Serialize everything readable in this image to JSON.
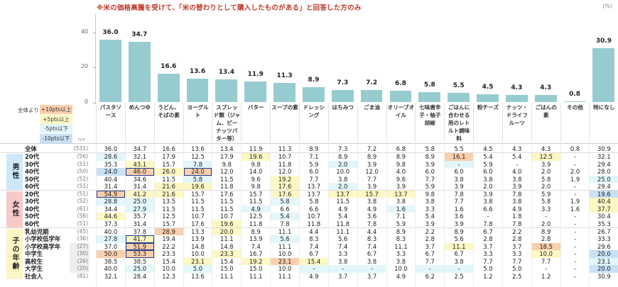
{
  "title": "※米の価格高騰を受けて、「米の替わりとして購入したものがある」と回答した方のみ",
  "unit": "(%)",
  "legend": {
    "caption": "全体より",
    "items": [
      {
        "label": "+10pts以上",
        "code": "o",
        "color": "#f9cfae"
      },
      {
        "label": "+5pts以上",
        "code": "y",
        "color": "#fdf7c3"
      },
      {
        "label": "-5pts以下",
        "code": "c",
        "color": "#e2f6fb"
      },
      {
        "label": "-10pts以下",
        "code": "b",
        "color": "#c8e1f5"
      }
    ],
    "n_label": "n="
  },
  "colors": {
    "bar": "#96ccd0",
    "title": "#c0392b",
    "box_border": "#1f3b8a",
    "group_male": "#cde8fb",
    "group_female": "#f8c9c9",
    "group_child": "#fdf5c6"
  },
  "chart_data": {
    "type": "bar",
    "title": "※米の価格高騰を受けて、「米の替わりとして購入したものがある」と回答した方のみ",
    "xlabel": "",
    "ylabel": "(%)",
    "ylim": [
      0,
      48
    ],
    "yticks": [
      0,
      20,
      40
    ],
    "grid": false,
    "categories": [
      "パスタソース",
      "めんつゆ",
      "うどん、そばの素",
      "ヨーグルト",
      "スプレッド類（ジャム、ピーナッツバター等）",
      "バター",
      "スープの素",
      "ドレッシング",
      "はちみつ",
      "ごま油",
      "オリーブオイル",
      "七味唐辛子・柚子胡椒",
      "ごはんに合わせる用のレトルト調味料",
      "粉チーズ",
      "ナッツ・ドライフルーツ",
      "ごはんの素",
      "その他",
      "特になし"
    ],
    "values": [
      36.0,
      34.7,
      16.6,
      13.6,
      13.4,
      11.9,
      11.3,
      8.9,
      7.3,
      7.2,
      6.8,
      5.8,
      5.5,
      4.5,
      4.3,
      4.3,
      0.8,
      30.9
    ]
  },
  "columns": [
    {
      "label": "パスタソース"
    },
    {
      "label": "めんつゆ"
    },
    {
      "label": "うどん、そばの素"
    },
    {
      "label": "ヨーグルト"
    },
    {
      "label": "スプレッド類（ジャム、ピーナッツバター等）"
    },
    {
      "label": "バター"
    },
    {
      "label": "スープの素"
    },
    {
      "label": "ドレッシング"
    },
    {
      "label": "はちみつ"
    },
    {
      "label": "ごま油"
    },
    {
      "label": "オリーブオイル"
    },
    {
      "label": "七味唐辛子・柚子胡椒"
    },
    {
      "label": "ごはんに合わせる用のレトルト調味料"
    },
    {
      "label": "粉チーズ"
    },
    {
      "label": "ナッツ・ドライフルーツ"
    },
    {
      "label": "ごはんの素"
    },
    {
      "label": "その他"
    },
    {
      "label": "特になし"
    }
  ],
  "groups": [
    {
      "label": "男性",
      "color": "#cde8fb",
      "start": 1,
      "count": 5
    },
    {
      "label": "女性",
      "color": "#f8c9c9",
      "start": 6,
      "count": 5
    },
    {
      "label": "子の年齢",
      "color": "#fdf5c6",
      "start": 11,
      "count": 7
    }
  ],
  "rows": [
    {
      "label": "全体",
      "n": "(531)",
      "small": false,
      "values": [
        "36.0",
        "34.7",
        "16.6",
        "13.6",
        "13.4",
        "11.9",
        "11.3",
        "8.9",
        "7.3",
        "7.2",
        "6.8",
        "5.8",
        "5.5",
        "4.5",
        "4.3",
        "4.3",
        "0.8",
        "30.9"
      ],
      "hl": [
        "",
        "",
        "",
        "",
        "",
        "",
        "",
        "",
        "",
        "",
        "",
        "",
        "",
        "",
        "",
        "",
        "",
        ""
      ],
      "box": []
    },
    {
      "label": "20代",
      "n": "(56)",
      "small": false,
      "values": [
        "28.6",
        "32.1",
        "17.9",
        "12.5",
        "17.9",
        "19.6",
        "10.7",
        "7.1",
        "8.9",
        "8.9",
        "8.9",
        "8.9",
        "16.1",
        "5.4",
        "5.4",
        "12.5",
        "-",
        "32.1"
      ],
      "hl": [
        "c",
        "",
        "",
        "",
        "",
        "y",
        "",
        "",
        "",
        "",
        "",
        "",
        "o",
        "",
        "",
        "y",
        "",
        ""
      ],
      "box": []
    },
    {
      "label": "30代",
      "n": "(51)",
      "small": false,
      "values": [
        "35.3",
        "43.1",
        "15.7",
        "7.8",
        "9.8",
        "9.8",
        "11.8",
        "5.9",
        "2.0",
        "3.9",
        "9.8",
        "3.9",
        "-",
        "5.9",
        "-",
        "3.9",
        "-",
        "29.4"
      ],
      "hl": [
        "",
        "y",
        "",
        "c",
        "",
        "",
        "",
        "",
        "c",
        "",
        "",
        "",
        "c",
        "",
        "",
        "",
        "",
        ""
      ],
      "box": []
    },
    {
      "label": "40代",
      "n": "(50)",
      "small": false,
      "values": [
        "24.0",
        "46.0",
        "26.0",
        "24.0",
        "12.0",
        "14.0",
        "12.0",
        "6.0",
        "10.0",
        "12.0",
        "4.0",
        "6.0",
        "6.0",
        "6.0",
        "4.0",
        "2.0",
        "2.0",
        "28.0"
      ],
      "hl": [
        "b",
        "o",
        "y",
        "o",
        "",
        "",
        "",
        "",
        "",
        "",
        "",
        "",
        "",
        "",
        "",
        "",
        "",
        ""
      ],
      "box": [
        1,
        3
      ]
    },
    {
      "label": "50代",
      "n": "(52)",
      "small": false,
      "values": [
        "40.4",
        "34.6",
        "11.5",
        "5.8",
        "11.5",
        "9.6",
        "19.2",
        "7.7",
        "3.8",
        "7.7",
        "9.6",
        "7.7",
        "3.8",
        "3.8",
        "3.8",
        "5.8",
        "1.9",
        "25.0"
      ],
      "hl": [
        "",
        "",
        "",
        "c",
        "",
        "",
        "y",
        "",
        "",
        "",
        "",
        "",
        "",
        "",
        "",
        "",
        "",
        "c"
      ],
      "box": []
    },
    {
      "label": "60代",
      "n": "(51)",
      "small": false,
      "values": [
        "31.4",
        "31.4",
        "21.6",
        "19.6",
        "11.8",
        "9.8",
        "17.6",
        "13.7",
        "2.0",
        "3.9",
        "3.9",
        "5.9",
        "3.9",
        "2.0",
        "3.9",
        "2.0",
        "-",
        "29.4"
      ],
      "hl": [
        "",
        "",
        "y",
        "y",
        "",
        "",
        "y",
        "",
        "c",
        "",
        "",
        "",
        "",
        "",
        "",
        "",
        "",
        ""
      ],
      "box": []
    },
    {
      "label": "20代",
      "n": "(51)",
      "small": false,
      "values": [
        "54.9",
        "41.2",
        "21.6",
        "15.7",
        "17.6",
        "15.7",
        "17.6",
        "13.7",
        "13.7",
        "15.7",
        "13.7",
        "9.8",
        "7.8",
        "3.9",
        "7.8",
        "5.9",
        "-",
        "19.6"
      ],
      "hl": [
        "o",
        "y",
        "y",
        "",
        "",
        "",
        "y",
        "",
        "y",
        "y",
        "y",
        "",
        "",
        "",
        "",
        "",
        "",
        "b"
      ],
      "box": [
        0
      ]
    },
    {
      "label": "30代",
      "n": "(52)",
      "small": false,
      "values": [
        "28.8",
        "25.0",
        "13.5",
        "11.5",
        "11.5",
        "11.5",
        "5.8",
        "5.8",
        "11.5",
        "3.8",
        "3.8",
        "3.8",
        "7.7",
        "3.8",
        "3.8",
        "5.8",
        "1.9",
        "40.4"
      ],
      "hl": [
        "c",
        "c",
        "",
        "",
        "",
        "",
        "c",
        "",
        "",
        "",
        "",
        "",
        "",
        "",
        "",
        "",
        "",
        "y"
      ],
      "box": []
    },
    {
      "label": "40代",
      "n": "(61)",
      "small": false,
      "values": [
        "34.4",
        "27.9",
        "11.5",
        "11.5",
        "11.5",
        "4.9",
        "6.6",
        "6.6",
        "4.9",
        "4.9",
        "1.6",
        "3.3",
        "1.6",
        "6.6",
        "4.9",
        "3.3",
        "1.6",
        "37.7"
      ],
      "hl": [
        "",
        "c",
        "",
        "",
        "",
        "c",
        "",
        "",
        "",
        "",
        "c",
        "",
        "",
        "",
        "",
        "",
        "",
        "y"
      ],
      "box": []
    },
    {
      "label": "50代",
      "n": "(56)",
      "small": false,
      "values": [
        "44.6",
        "35.7",
        "12.5",
        "10.7",
        "10.7",
        "12.5",
        "5.4",
        "10.7",
        "5.4",
        "3.6",
        "7.1",
        "5.4",
        "3.6",
        "-",
        "1.8",
        "-",
        "-",
        "30.4"
      ],
      "hl": [
        "y",
        "",
        "",
        "",
        "",
        "",
        "c",
        "",
        "",
        "",
        "",
        "",
        "",
        "",
        "",
        "",
        "",
        ""
      ],
      "box": []
    },
    {
      "label": "60代",
      "n": "(51)",
      "small": false,
      "values": [
        "37.3",
        "31.4",
        "15.7",
        "17.6",
        "19.6",
        "11.8",
        "7.8",
        "11.8",
        "11.8",
        "7.8",
        "5.9",
        "3.9",
        "3.9",
        "7.8",
        "7.8",
        "2.0",
        "-",
        "35.3"
      ],
      "hl": [
        "",
        "",
        "",
        "",
        "y",
        "",
        "",
        "",
        "",
        "",
        "",
        "",
        "",
        "",
        "",
        "",
        "",
        ""
      ],
      "box": []
    },
    {
      "label": "乳幼児期",
      "n": "(45)",
      "small": false,
      "values": [
        "40.0",
        "37.8",
        "28.9",
        "13.3",
        "20.0",
        "8.9",
        "11.1",
        "4.4",
        "11.1",
        "4.4",
        "8.9",
        "2.2",
        "8.9",
        "6.7",
        "2.2",
        "8.9",
        "-",
        "26.7"
      ],
      "hl": [
        "",
        "",
        "o",
        "",
        "y",
        "",
        "",
        "",
        "",
        "",
        "",
        "",
        "",
        "",
        "",
        "",
        "",
        ""
      ],
      "box": []
    },
    {
      "label": "小学校低学年",
      "n": "(36)",
      "small": false,
      "values": [
        "27.8",
        "41.7",
        "19.4",
        "13.9",
        "11.1",
        "13.9",
        "5.6",
        "8.3",
        "5.6",
        "8.3",
        "8.3",
        "2.8",
        "5.6",
        "2.8",
        "2.8",
        "2.8",
        "-",
        "33.3"
      ],
      "hl": [
        "c",
        "y",
        "",
        "",
        "",
        "",
        "c",
        "",
        "",
        "",
        "",
        "",
        "",
        "",
        "",
        "",
        "",
        ""
      ],
      "box": [
        1
      ]
    },
    {
      "label": "小学校高学年",
      "n": "(27)",
      "small": true,
      "values": [
        "37.0",
        "51.9",
        "22.2",
        "14.8",
        "14.8",
        "7.4",
        "11.1",
        "7.4",
        "7.4",
        "7.4",
        "11.1",
        "3.7",
        "11.1",
        "3.7",
        "3.7",
        "18.5",
        "-",
        "29.6"
      ],
      "hl": [
        "",
        "o",
        "",
        "",
        "",
        "",
        "",
        "",
        "",
        "",
        "",
        "",
        "y",
        "",
        "",
        "o",
        "",
        ""
      ],
      "box": [
        1
      ]
    },
    {
      "label": "中学生",
      "n": "(30)",
      "small": true,
      "values": [
        "50.0",
        "53.3",
        "23.3",
        "10.0",
        "23.3",
        "16.7",
        "10.0",
        "6.7",
        "3.3",
        "6.7",
        "3.3",
        "6.7",
        "6.7",
        "3.3",
        "3.3",
        "10.0",
        "-",
        "20.0"
      ],
      "hl": [
        "o",
        "o",
        "",
        "",
        "y",
        "",
        "",
        "",
        "",
        "",
        "",
        "",
        "",
        "",
        "",
        "y",
        "",
        "b"
      ],
      "box": [
        1
      ]
    },
    {
      "label": "高校生",
      "n": "(26)",
      "small": true,
      "values": [
        "38.5",
        "38.5",
        "15.4",
        "23.1",
        "15.4",
        "19.2",
        "23.1",
        "15.4",
        "3.8",
        "3.8",
        "3.8",
        "7.7",
        "3.8",
        "7.7",
        "7.7",
        "7.7",
        "-",
        "23.1"
      ],
      "hl": [
        "",
        "",
        "",
        "y",
        "",
        "y",
        "o",
        "y",
        "",
        "",
        "",
        "",
        "",
        "",
        "",
        "",
        "",
        "c"
      ],
      "box": []
    },
    {
      "label": "大学生",
      "n": "(20)",
      "small": true,
      "values": [
        "40.0",
        "25.0",
        "10.0",
        "5.0",
        "15.0",
        "15.0",
        "10.0",
        "-",
        "-",
        "-",
        "10.0",
        "-",
        "-",
        "5.0",
        "5.0",
        "-",
        "-",
        "20.0"
      ],
      "hl": [
        "",
        "c",
        "",
        "c",
        "",
        "",
        "",
        "c",
        "c",
        "c",
        "",
        "c",
        "c",
        "",
        "",
        "",
        "",
        "b"
      ],
      "box": []
    },
    {
      "label": "社会人",
      "n": "(81)",
      "small": false,
      "values": [
        "32.1",
        "28.4",
        "12.3",
        "13.6",
        "11.1",
        "11.1",
        "11.1",
        "4.9",
        "3.7",
        "3.7",
        "4.9",
        "6.2",
        "2.5",
        "1.2",
        "2.5",
        "1.2",
        "-",
        "30.9"
      ],
      "hl": [
        "",
        "",
        "",
        "",
        "",
        "",
        "",
        "",
        "",
        "",
        "",
        "",
        "",
        "",
        "",
        "",
        "",
        ""
      ],
      "box": []
    }
  ]
}
